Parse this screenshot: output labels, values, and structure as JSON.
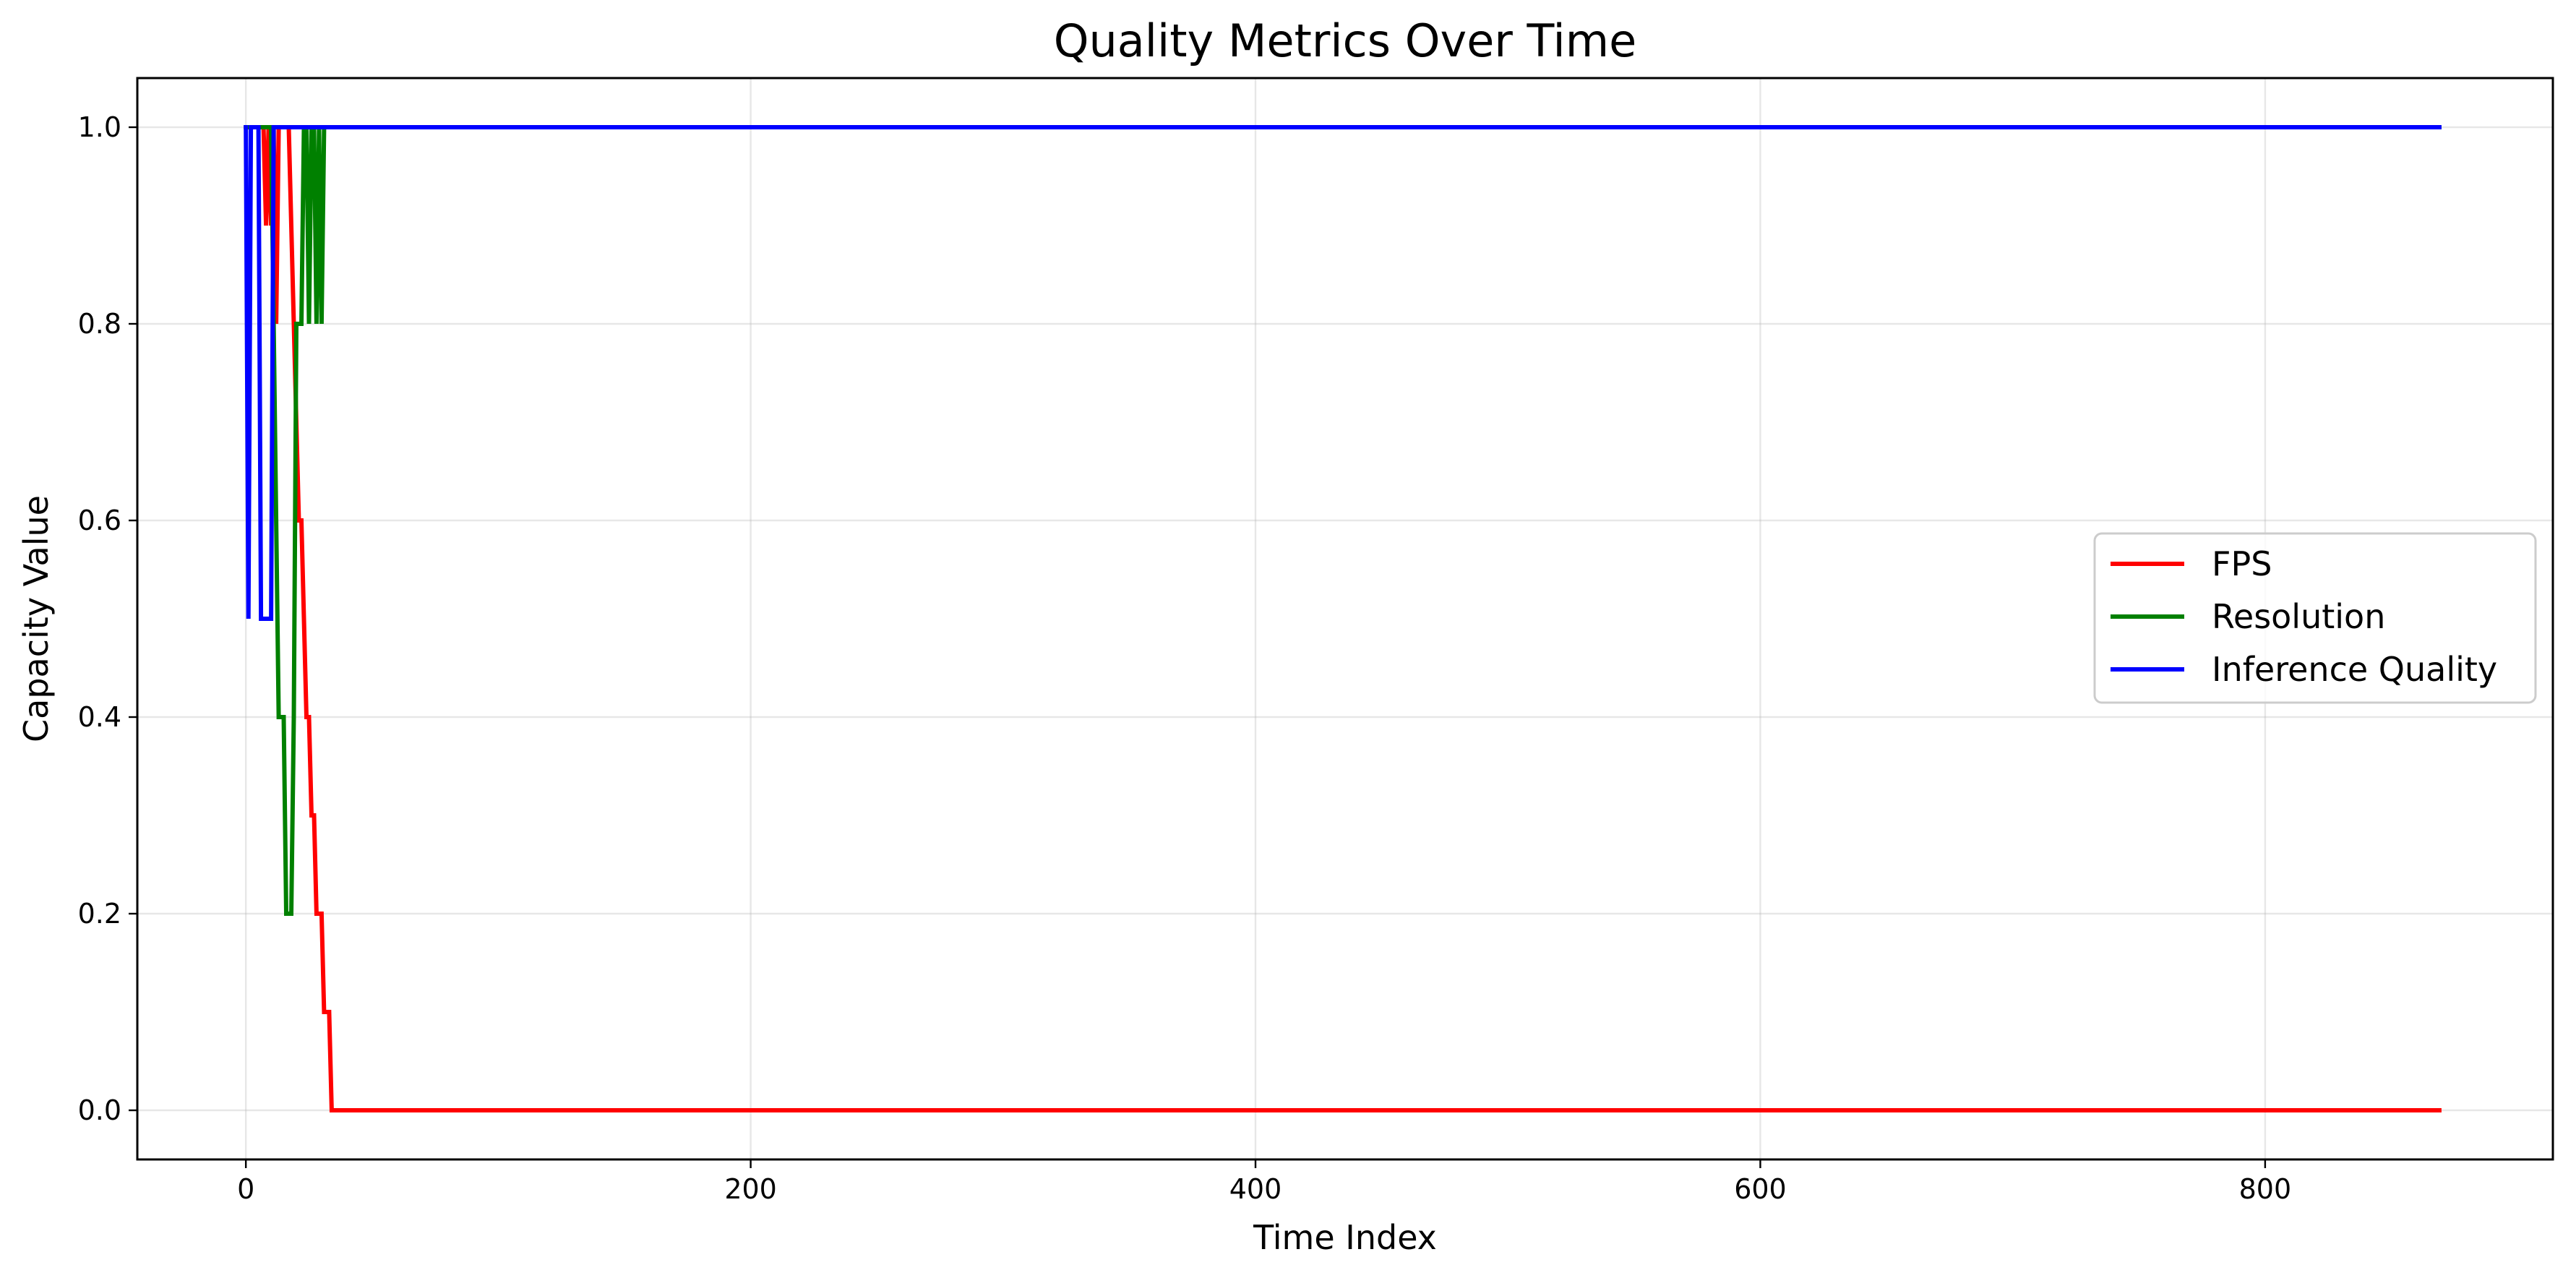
{
  "chart_data": {
    "type": "line",
    "title": "Quality Metrics Over Time",
    "xlabel": "Time Index",
    "ylabel": "Capacity Value",
    "xlim": [
      -43,
      914
    ],
    "ylim": [
      -0.05,
      1.05
    ],
    "xticks": [
      0,
      200,
      400,
      600,
      800
    ],
    "yticks": [
      0.0,
      0.2,
      0.4,
      0.6,
      0.8,
      1.0
    ],
    "xtick_labels": [
      "0",
      "200",
      "400",
      "600",
      "800"
    ],
    "ytick_labels": [
      "0.0",
      "0.2",
      "0.4",
      "0.6",
      "0.8",
      "1.0"
    ],
    "grid": true,
    "legend_position": "center-right",
    "series": [
      {
        "name": "FPS",
        "color": "#ff0000",
        "x": [
          0,
          7,
          8,
          9,
          10,
          11,
          12,
          13,
          14,
          15,
          16,
          17,
          18,
          19,
          20,
          21,
          22,
          23,
          24,
          25,
          26,
          27,
          28,
          29,
          30,
          31,
          32,
          33,
          34,
          35,
          869
        ],
        "y": [
          1.0,
          1.0,
          0.9,
          1.0,
          0.9,
          1.0,
          0.8,
          1.0,
          1.0,
          1.0,
          1.0,
          1.0,
          0.9,
          0.8,
          0.7,
          0.6,
          0.6,
          0.5,
          0.4,
          0.4,
          0.3,
          0.3,
          0.2,
          0.2,
          0.2,
          0.1,
          0.1,
          0.1,
          0.0,
          0.0,
          0.0
        ]
      },
      {
        "name": "Resolution",
        "color": "#008000",
        "x": [
          0,
          9,
          10,
          11,
          12,
          13,
          14,
          15,
          16,
          17,
          18,
          19,
          20,
          21,
          22,
          23,
          24,
          25,
          26,
          27,
          28,
          29,
          30,
          31,
          32,
          33,
          869
        ],
        "y": [
          1.0,
          1.0,
          1.0,
          0.8,
          0.6,
          0.4,
          0.4,
          0.4,
          0.2,
          0.2,
          0.2,
          0.4,
          0.8,
          0.8,
          0.8,
          1.0,
          1.0,
          0.8,
          1.0,
          1.0,
          0.8,
          1.0,
          0.8,
          1.0,
          1.0,
          1.0,
          1.0
        ]
      },
      {
        "name": "Inference Quality",
        "color": "#0000ff",
        "x": [
          0,
          1,
          2,
          3,
          4,
          5,
          6,
          7,
          8,
          9,
          10,
          11,
          12,
          13,
          869
        ],
        "y": [
          1.0,
          0.5,
          1.0,
          1.0,
          1.0,
          1.0,
          0.5,
          0.5,
          0.5,
          0.5,
          0.5,
          1.0,
          1.0,
          1.0,
          1.0
        ]
      }
    ]
  }
}
